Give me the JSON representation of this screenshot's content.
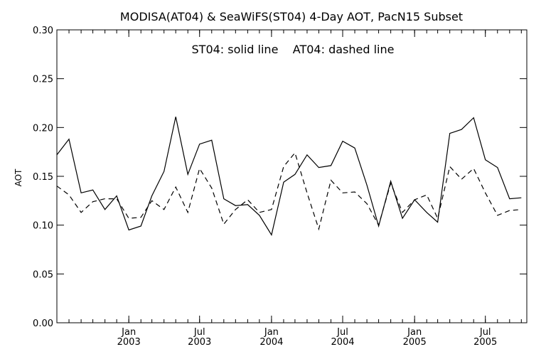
{
  "chart_data": {
    "type": "line",
    "title": "MODISA(AT04) & SeaWiFS(ST04) 4-Day AOT, PacN15 Subset",
    "annotation": "ST04: solid line    AT04: dashed line",
    "xlabel": "",
    "ylabel": "AOT",
    "ylim": [
      0.0,
      0.3
    ],
    "yticks": [
      "0.00",
      "0.05",
      "0.10",
      "0.15",
      "0.20",
      "0.25",
      "0.30"
    ],
    "xlim": [
      "2002-07-01",
      "2005-10-15"
    ],
    "xticks": [
      {
        "date": "2003-01-01",
        "line1": "Jan",
        "line2": "2003"
      },
      {
        "date": "2003-07-01",
        "line1": "Jul",
        "line2": "2003"
      },
      {
        "date": "2004-01-01",
        "line1": "Jan",
        "line2": "2004"
      },
      {
        "date": "2004-07-01",
        "line1": "Jul",
        "line2": "2004"
      },
      {
        "date": "2005-01-01",
        "line1": "Jan",
        "line2": "2005"
      },
      {
        "date": "2005-07-01",
        "line1": "Jul",
        "line2": "2005"
      }
    ],
    "grid": false,
    "x": [
      "2002-07-01",
      "2002-08-01",
      "2002-09-01",
      "2002-10-01",
      "2002-11-01",
      "2002-12-01",
      "2003-01-01",
      "2003-02-01",
      "2003-03-01",
      "2003-04-01",
      "2003-05-01",
      "2003-06-01",
      "2003-07-01",
      "2003-08-01",
      "2003-09-01",
      "2003-10-01",
      "2003-11-01",
      "2003-12-01",
      "2004-01-01",
      "2004-02-01",
      "2004-03-01",
      "2004-04-01",
      "2004-05-01",
      "2004-06-01",
      "2004-07-01",
      "2004-08-01",
      "2004-09-01",
      "2004-10-01",
      "2004-11-01",
      "2004-12-01",
      "2005-01-01",
      "2005-02-01",
      "2005-03-01",
      "2005-04-01",
      "2005-05-01",
      "2005-06-01",
      "2005-07-01",
      "2005-08-01",
      "2005-09-01",
      "2005-10-01"
    ],
    "series": [
      {
        "id": "ST04",
        "style": "solid",
        "values": [
          0.172,
          0.188,
          0.133,
          0.136,
          0.116,
          0.13,
          0.095,
          0.099,
          0.13,
          0.155,
          0.211,
          0.152,
          0.183,
          0.187,
          0.127,
          0.12,
          0.121,
          0.11,
          0.09,
          0.144,
          0.152,
          0.172,
          0.159,
          0.161,
          0.186,
          0.179,
          0.141,
          0.099,
          0.145,
          0.107,
          0.126,
          0.113,
          0.103,
          0.194,
          0.198,
          0.21,
          0.167,
          0.159,
          0.127,
          0.128
        ]
      },
      {
        "id": "AT04",
        "style": "dashed",
        "values": [
          0.14,
          0.131,
          0.113,
          0.124,
          0.127,
          0.127,
          0.107,
          0.108,
          0.125,
          0.116,
          0.139,
          0.113,
          0.158,
          0.138,
          0.101,
          0.116,
          0.126,
          0.113,
          0.116,
          0.16,
          0.174,
          0.133,
          0.096,
          0.146,
          0.133,
          0.134,
          0.122,
          0.1,
          0.143,
          0.113,
          0.126,
          0.131,
          0.107,
          0.16,
          0.147,
          0.158,
          0.133,
          0.11,
          0.115,
          0.116
        ]
      }
    ],
    "colors": {
      "line": "#000000",
      "background": "#ffffff"
    }
  }
}
